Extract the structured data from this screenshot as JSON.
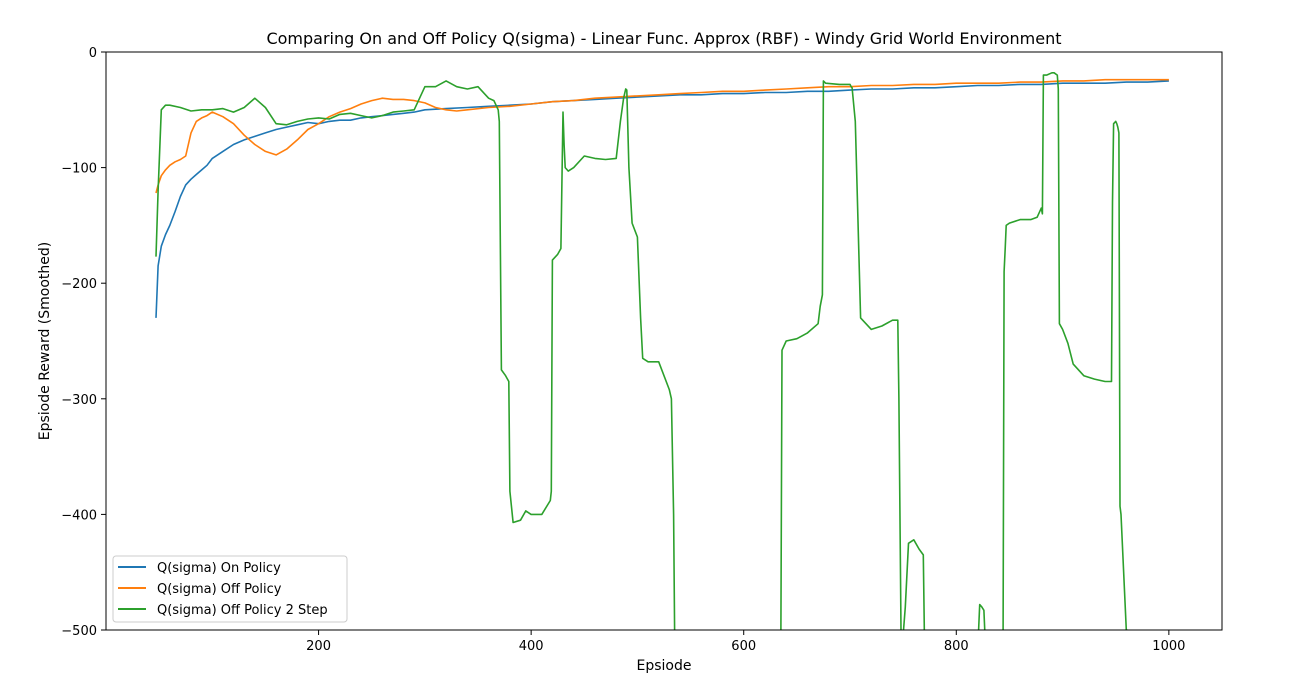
{
  "chart_data": {
    "type": "line",
    "title": "Comparing On and Off Policy Q(sigma) - Linear Func. Approx (RBF) - Windy Grid World Environment",
    "xlabel": "Epsiode",
    "ylabel": "Epsiode Reward (Smoothed)",
    "xlim": [
      0,
      1050
    ],
    "ylim": [
      -500,
      0
    ],
    "xticks": [
      200,
      400,
      600,
      800,
      1000
    ],
    "yticks": [
      0,
      -100,
      -200,
      -300,
      -400,
      -500
    ],
    "xtick_labels": [
      "200",
      "400",
      "600",
      "800",
      "1000"
    ],
    "ytick_labels": [
      "0",
      "−100",
      "−200",
      "−300",
      "−400",
      "−500"
    ],
    "grid": false,
    "legend_placement": "lower-left",
    "series": [
      {
        "name": "Q(sigma) On Policy",
        "color": "#1f77b4",
        "x": [
          47,
          49,
          52,
          56,
          60,
          65,
          70,
          75,
          80,
          85,
          90,
          95,
          100,
          110,
          120,
          130,
          140,
          150,
          160,
          170,
          180,
          190,
          200,
          210,
          220,
          230,
          240,
          250,
          260,
          270,
          280,
          290,
          300,
          320,
          340,
          360,
          380,
          400,
          420,
          440,
          460,
          480,
          500,
          520,
          540,
          560,
          580,
          600,
          620,
          640,
          660,
          680,
          700,
          720,
          740,
          760,
          780,
          800,
          820,
          840,
          860,
          880,
          900,
          920,
          940,
          960,
          980,
          1000
        ],
        "y": [
          -230,
          -185,
          -168,
          -158,
          -150,
          -138,
          -125,
          -115,
          -110,
          -106,
          -102,
          -98,
          -92,
          -86,
          -80,
          -76,
          -73,
          -70,
          -67,
          -65,
          -63,
          -61,
          -62,
          -60,
          -59,
          -59,
          -57,
          -56,
          -55,
          -54,
          -53,
          -52,
          -50,
          -49,
          -48,
          -47,
          -46,
          -45,
          -43,
          -42,
          -41,
          -40,
          -39,
          -38,
          -37,
          -37,
          -36,
          -36,
          -35,
          -35,
          -34,
          -34,
          -33,
          -32,
          -32,
          -31,
          -31,
          -30,
          -29,
          -29,
          -28,
          -28,
          -27,
          -27,
          -27,
          -26,
          -26,
          -25
        ]
      },
      {
        "name": "Q(sigma) Off Policy",
        "color": "#ff7f0e",
        "x": [
          47,
          49,
          52,
          56,
          60,
          65,
          70,
          75,
          80,
          85,
          90,
          95,
          100,
          110,
          120,
          130,
          140,
          150,
          160,
          170,
          180,
          190,
          200,
          210,
          220,
          230,
          240,
          250,
          260,
          270,
          280,
          290,
          300,
          310,
          320,
          330,
          340,
          360,
          380,
          400,
          420,
          440,
          460,
          480,
          500,
          520,
          540,
          560,
          580,
          600,
          620,
          640,
          660,
          680,
          700,
          720,
          740,
          760,
          780,
          800,
          820,
          840,
          860,
          880,
          900,
          920,
          940,
          960,
          980,
          1000
        ],
        "y": [
          -122,
          -115,
          -107,
          -102,
          -98,
          -95,
          -93,
          -90,
          -70,
          -60,
          -57,
          -55,
          -52,
          -56,
          -62,
          -72,
          -80,
          -86,
          -89,
          -84,
          -76,
          -67,
          -62,
          -56,
          -52,
          -49,
          -45,
          -42,
          -40,
          -41,
          -41,
          -42,
          -44,
          -48,
          -50,
          -51,
          -50,
          -48,
          -47,
          -45,
          -43,
          -42,
          -40,
          -39,
          -38,
          -37,
          -36,
          -35,
          -34,
          -34,
          -33,
          -32,
          -31,
          -30,
          -30,
          -29,
          -29,
          -28,
          -28,
          -27,
          -27,
          -27,
          -26,
          -26,
          -25,
          -25,
          -24,
          -24,
          -24,
          -24
        ]
      },
      {
        "name": "Q(sigma) Off Policy 2 Step",
        "color": "#2ca02c",
        "x": [
          47,
          49,
          52,
          56,
          60,
          70,
          80,
          90,
          100,
          110,
          120,
          130,
          140,
          150,
          160,
          170,
          180,
          190,
          200,
          210,
          220,
          230,
          240,
          250,
          260,
          270,
          280,
          290,
          300,
          310,
          320,
          330,
          340,
          350,
          360,
          365,
          369,
          370,
          372,
          376,
          379,
          380,
          383,
          390,
          395,
          400,
          410,
          418,
          419,
          420,
          425,
          428,
          430,
          431,
          432,
          435,
          440,
          450,
          460,
          470,
          480,
          484,
          487,
          489,
          490,
          492,
          495,
          500,
          503,
          505,
          510,
          520,
          530,
          532,
          534,
          535,
          550,
          600,
          634,
          635,
          636,
          640,
          650,
          660,
          670,
          672,
          674,
          675,
          677,
          690,
          700,
          701,
          702,
          705,
          710,
          720,
          730,
          740,
          745,
          746,
          748,
          750,
          752,
          755,
          760,
          765,
          769,
          770,
          790,
          820,
          821,
          822,
          824,
          826,
          827,
          840,
          843,
          844,
          845,
          846,
          847,
          850,
          860,
          870,
          876,
          880,
          881,
          882,
          885,
          890,
          892,
          895,
          896,
          897,
          900,
          905,
          910,
          920,
          930,
          940,
          945,
          946,
          947,
          948,
          950,
          951,
          952,
          953,
          954,
          955,
          960,
          1000
        ],
        "y": [
          -177,
          -120,
          -50,
          -46,
          -46,
          -48,
          -51,
          -50,
          -50,
          -49,
          -52,
          -48,
          -40,
          -48,
          -62,
          -63,
          -60,
          -58,
          -57,
          -58,
          -54,
          -53,
          -55,
          -57,
          -55,
          -52,
          -51,
          -50,
          -30,
          -30,
          -25,
          -30,
          -32,
          -30,
          -40,
          -42,
          -50,
          -60,
          -275,
          -280,
          -285,
          -380,
          -407,
          -405,
          -397,
          -400,
          -400,
          -388,
          -380,
          -180,
          -175,
          -170,
          -52,
          -80,
          -100,
          -103,
          -100,
          -90,
          -92,
          -93,
          -92,
          -60,
          -40,
          -32,
          -33,
          -100,
          -148,
          -160,
          -230,
          -265,
          -268,
          -268,
          -292,
          -300,
          -400,
          -500,
          -505,
          -505,
          -505,
          -500,
          -258,
          -250,
          -248,
          -243,
          -235,
          -220,
          -210,
          -25,
          -27,
          -28,
          -28,
          -30,
          -31,
          -60,
          -230,
          -240,
          -237,
          -232,
          -232,
          -300,
          -500,
          -505,
          -480,
          -425,
          -422,
          -430,
          -435,
          -505,
          -505,
          -505,
          -500,
          -478,
          -480,
          -483,
          -505,
          -505,
          -505,
          -500,
          -190,
          -170,
          -150,
          -148,
          -145,
          -145,
          -143,
          -135,
          -140,
          -20,
          -20,
          -18,
          -18,
          -20,
          -32,
          -235,
          -240,
          -252,
          -270,
          -280,
          -283,
          -285,
          -285,
          -285,
          -130,
          -62,
          -60,
          -62,
          -65,
          -70,
          -393,
          -400,
          -500,
          -505
        ]
      }
    ]
  }
}
